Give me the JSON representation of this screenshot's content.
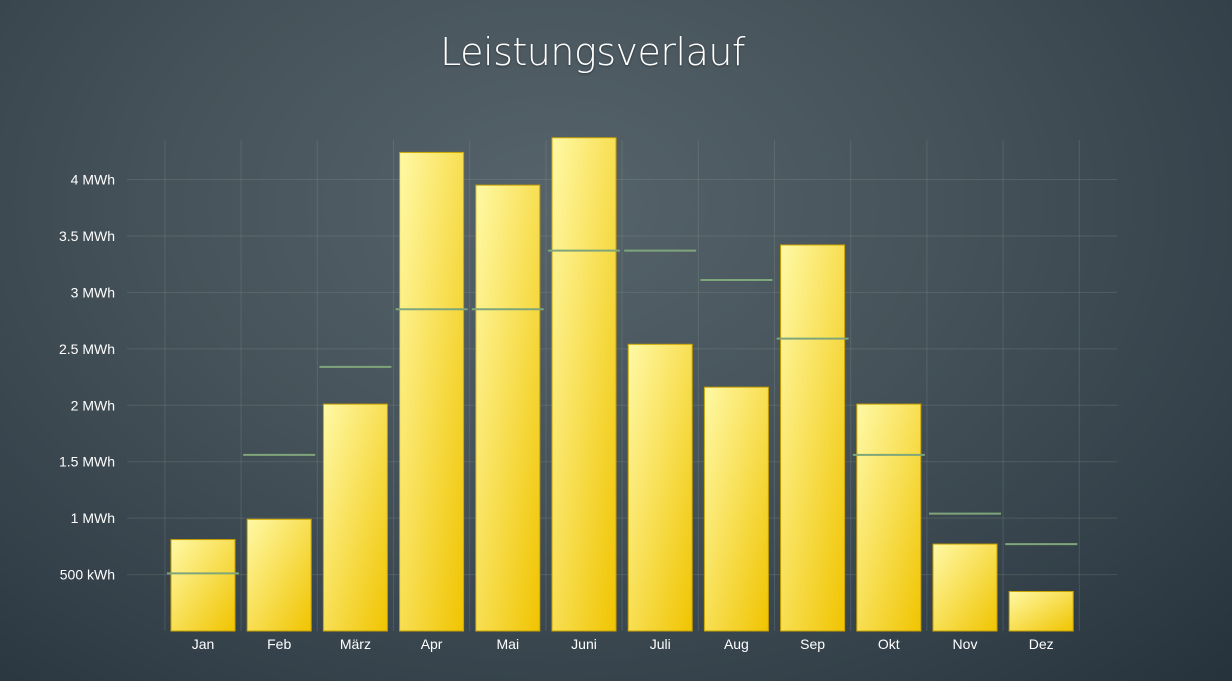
{
  "chart_data": {
    "type": "bar",
    "title": "Leistungsverlauf",
    "categories": [
      "Jan",
      "Feb",
      "März",
      "Apr",
      "Mai",
      "Juni",
      "Juli",
      "Aug",
      "Sep",
      "Okt",
      "Nov",
      "Dez"
    ],
    "series": [
      {
        "type": "bar",
        "values": [
          0.81,
          0.99,
          2.01,
          4.24,
          3.95,
          4.37,
          2.54,
          2.16,
          3.42,
          2.01,
          0.77,
          0.35
        ]
      },
      {
        "type": "reference-line",
        "values": [
          0.51,
          1.56,
          2.34,
          2.85,
          2.85,
          3.37,
          3.37,
          3.11,
          2.59,
          1.56,
          1.04,
          0.77
        ]
      }
    ],
    "y_unit": "MWh",
    "ylim": [
      0,
      4.35
    ],
    "y_ticks": [
      0.5,
      1,
      1.5,
      2,
      2.5,
      3,
      3.5,
      4
    ],
    "y_tick_labels": [
      "500 kWh",
      "1 MWh",
      "1.5 MWh",
      "2 MWh",
      "2.5 MWh",
      "3 MWh",
      "3.5 MWh",
      "4 MWh"
    ],
    "grid": true,
    "colors": {
      "bar_light": "#fff9a6",
      "bar_dark": "#f0c400",
      "bar_stroke": "#c9a200",
      "reference_line": "#7fa57a",
      "grid": "rgba(150,170,160,0.22)"
    }
  }
}
